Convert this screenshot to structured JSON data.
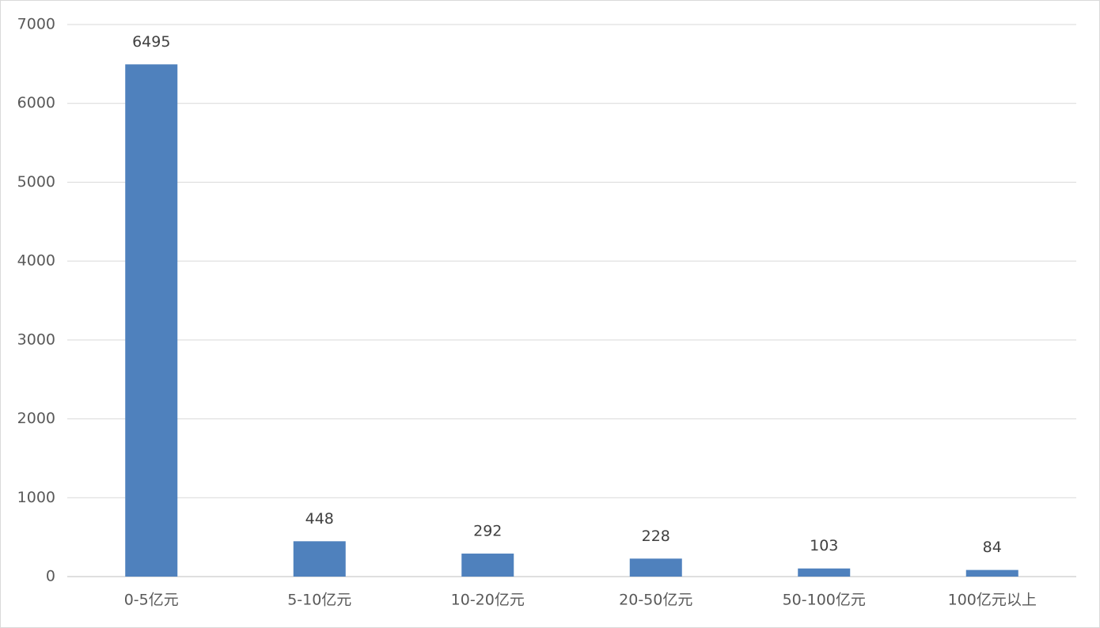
{
  "chart_data": {
    "type": "bar",
    "categories": [
      "0-5亿元",
      "5-10亿元",
      "10-20亿元",
      "20-50亿元",
      "50-100亿元",
      "100亿元以上"
    ],
    "values": [
      6495,
      448,
      292,
      228,
      103,
      84
    ],
    "color": "#4f81bd",
    "ylim": [
      0,
      7000
    ],
    "yticks": [
      0,
      1000,
      2000,
      3000,
      4000,
      5000,
      6000,
      7000
    ],
    "grid": true
  }
}
